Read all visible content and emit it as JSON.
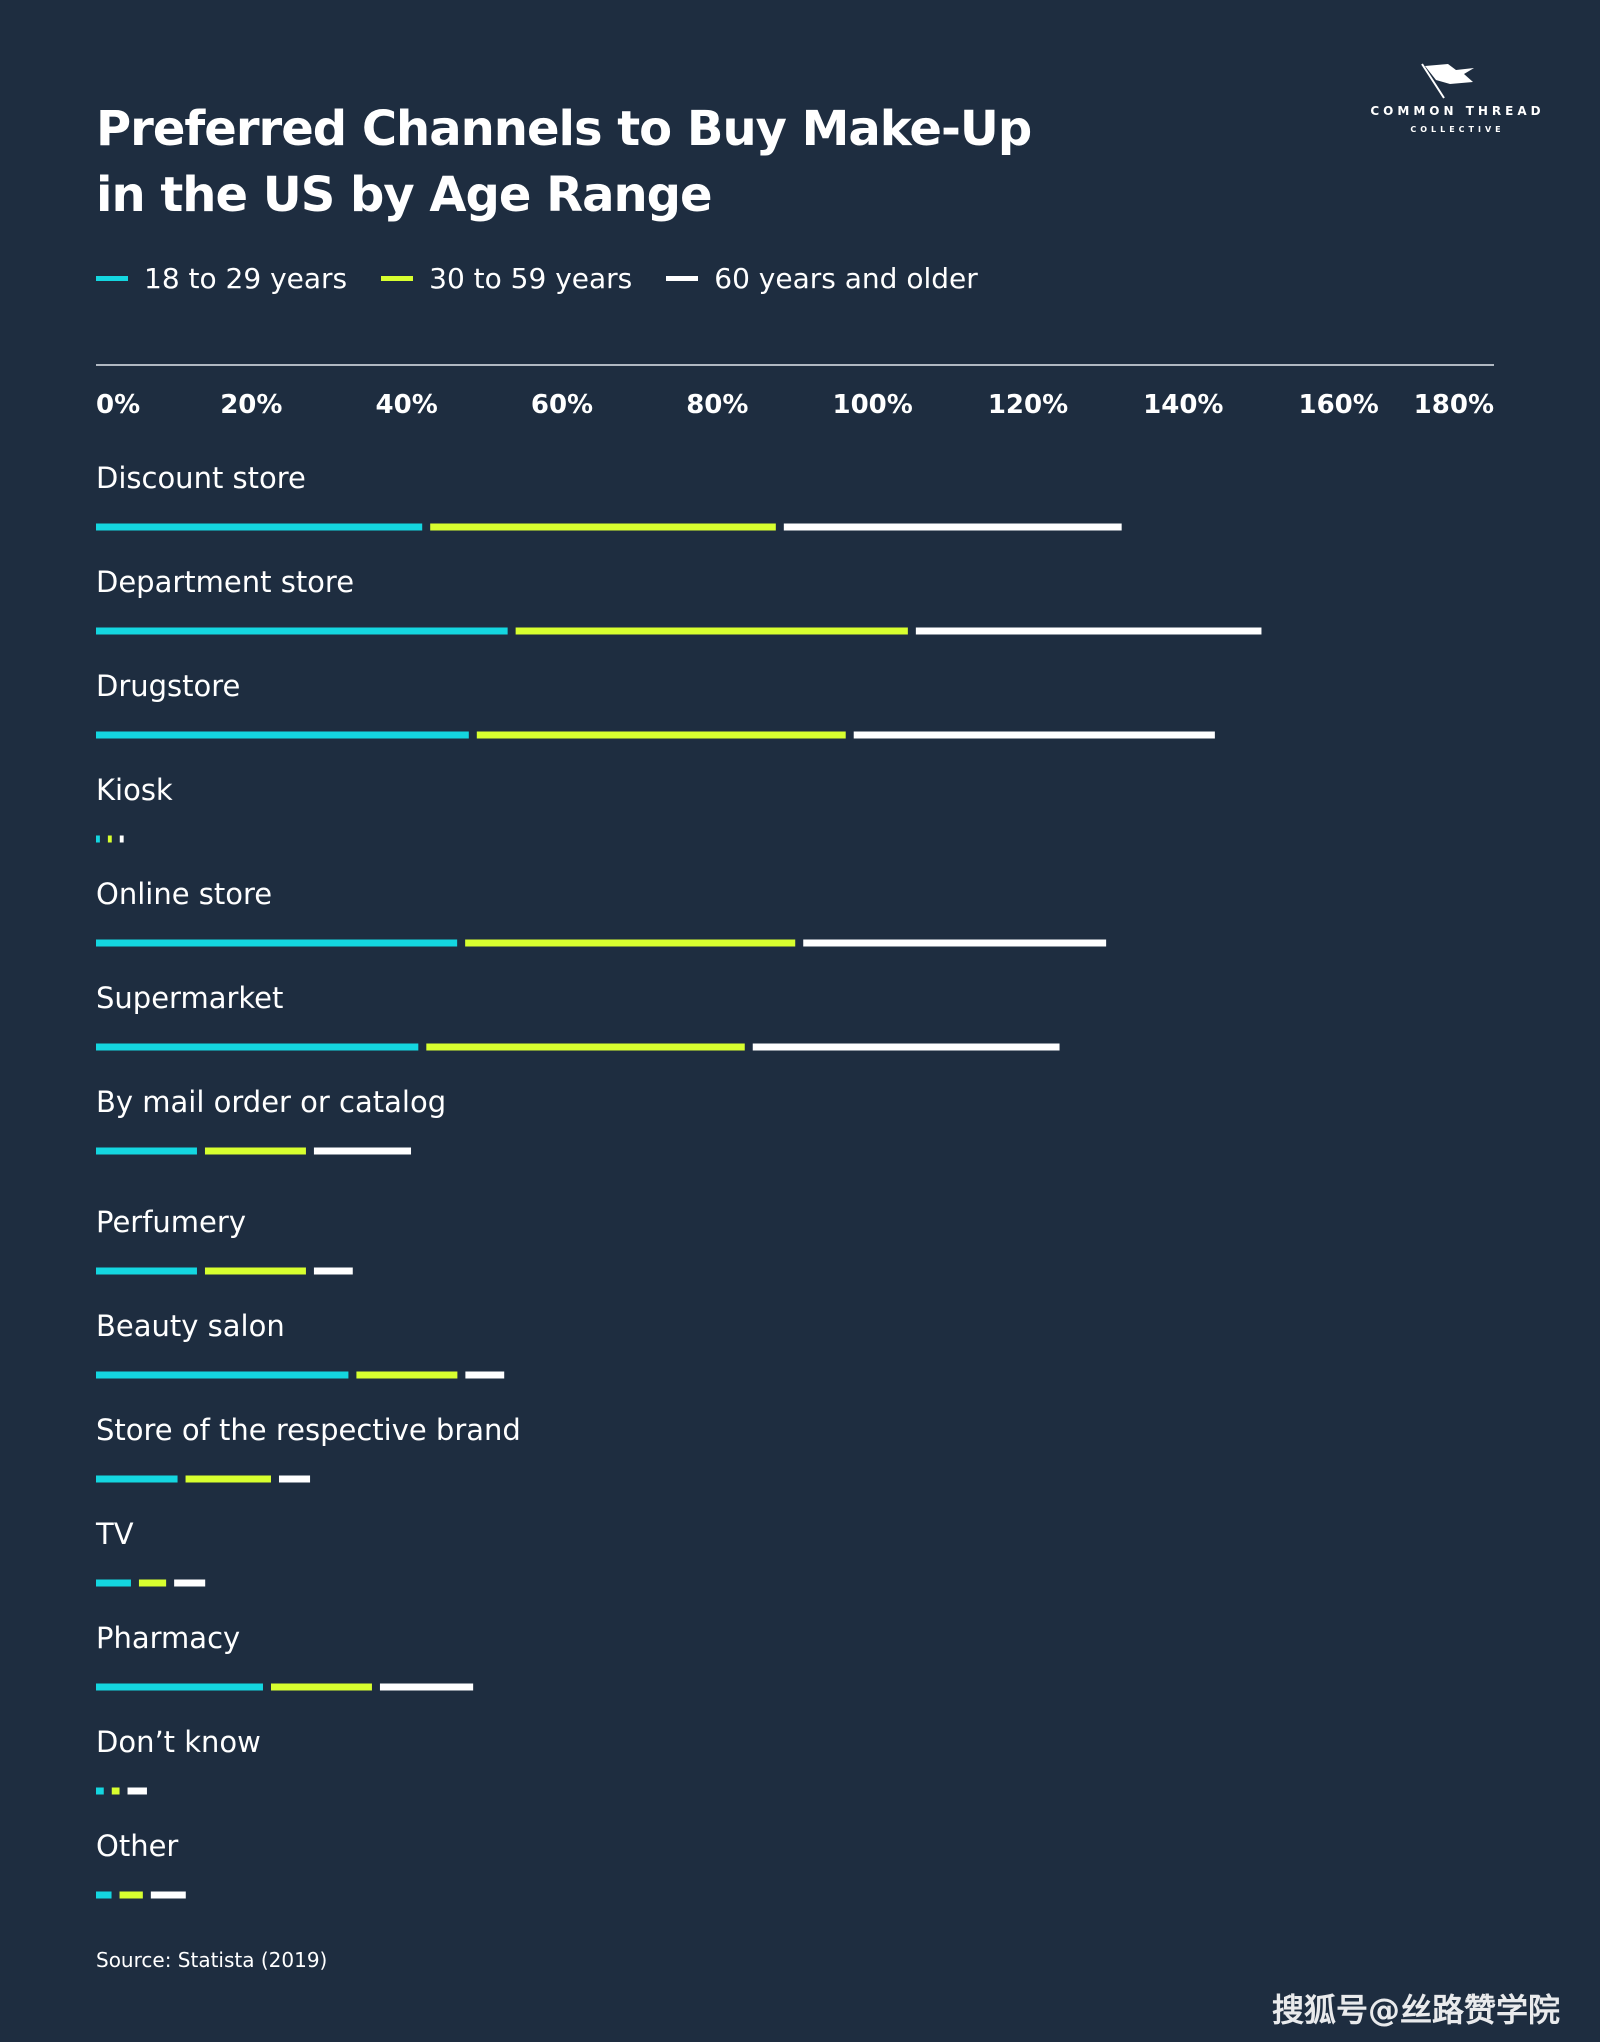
{
  "title": {
    "line1": "Preferred Channels to Buy Make-Up",
    "line2": "in the US by Age Range"
  },
  "logo": {
    "line1": "COMMON THREAD",
    "line2": "COLLECTIVE"
  },
  "colors": {
    "background": "#1e2d40",
    "s1": "#14d6e0",
    "s2": "#d8ff2f",
    "s3": "#ffffff",
    "axis": "#b0b8c2"
  },
  "source": "Source: Statista (2019)",
  "watermark": "搜狐号@丝路赞学院",
  "chart_data": {
    "type": "bar",
    "orientation": "horizontal",
    "stacked": true,
    "title": "Preferred Channels to Buy Make-Up in the US by Age Range",
    "xlim": [
      0,
      180
    ],
    "xticks": [
      "0%",
      "20%",
      "40%",
      "60%",
      "80%",
      "100%",
      "120%",
      "140%",
      "160%",
      "180%"
    ],
    "legend_position": "top-left",
    "categories": [
      "Discount store",
      "Department store",
      "Drugstore",
      "Kiosk",
      "Online store",
      "Supermarket",
      "By mail order or catalog",
      "Perfumery",
      "Beauty salon",
      "Store of the respective brand",
      "TV",
      "Pharmacy",
      "Don’t know",
      "Other"
    ],
    "series": [
      {
        "name": "18 to 29 years",
        "color": "#14d6e0",
        "values": [
          42,
          53,
          48,
          0.5,
          46.5,
          41.5,
          13,
          13,
          32.5,
          10.5,
          4.5,
          21.5,
          1,
          2
        ]
      },
      {
        "name": "30 to 59 years",
        "color": "#d8ff2f",
        "values": [
          44.5,
          50.5,
          47.5,
          0.5,
          42.5,
          41,
          13,
          13,
          13,
          11,
          3.5,
          13,
          1,
          3
        ]
      },
      {
        "name": "60 years and older",
        "color": "#ffffff",
        "values": [
          43.5,
          44.5,
          46.5,
          0.5,
          39,
          39.5,
          12.5,
          5,
          5,
          4,
          4,
          12,
          2.5,
          4.5
        ]
      }
    ]
  }
}
